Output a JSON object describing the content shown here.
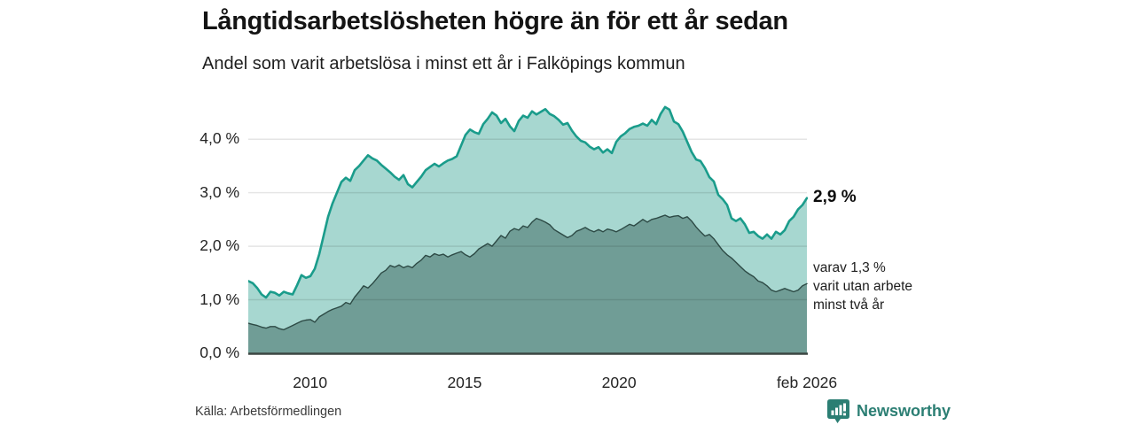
{
  "header": {
    "title": "Långtidsarbetslösheten högre än för ett år sedan",
    "subtitle": "Andel som varit arbetslösa i minst ett år i Falköpings kommun"
  },
  "annotations": {
    "latest_total": "2,9 %",
    "latest_two_year": "varav 1,3 %\nvarit utan arbete\nminst två år"
  },
  "footer": {
    "source": "Källa: Arbetsförmedlingen",
    "brand": "Newsworthy"
  },
  "colors": {
    "line_total": "#1a9c8b",
    "fill_total": "#a7d7d0",
    "line_two_year": "#2d4a45",
    "fill_two_year": "#709d96",
    "axis": "#3c4642",
    "brand_teal": "#2b7e73"
  },
  "chart_data": {
    "type": "area",
    "title": "Långtidsarbetslösheten högre än för ett år sedan",
    "subtitle": "Andel som varit arbetslösa i minst ett år i Falköpings kommun",
    "unit": "%",
    "x_start": 2008.0,
    "x_end": 2026.08,
    "ylim": [
      0,
      4.78
    ],
    "grid": true,
    "legend": "none",
    "y_ticks": [
      {
        "label": "0,0 %",
        "v": 0
      },
      {
        "label": "1,0 %",
        "v": 1
      },
      {
        "label": "2,0 %",
        "v": 2
      },
      {
        "label": "3,0 %",
        "v": 3
      },
      {
        "label": "4,0 %",
        "v": 4
      }
    ],
    "x_ticks": [
      {
        "label": "2010",
        "t": 2010
      },
      {
        "label": "2015",
        "t": 2015
      },
      {
        "label": "2020",
        "t": 2020
      },
      {
        "label": "feb 2026",
        "t": 2026.08
      }
    ],
    "series": [
      {
        "name": "Arbetslösa minst ett år",
        "end_value_label": "2,9 %",
        "color": "#1a9c8b",
        "fill": "#a7d7d0",
        "values": [
          1.35,
          1.31,
          1.22,
          1.1,
          1.04,
          1.15,
          1.13,
          1.08,
          1.15,
          1.12,
          1.1,
          1.27,
          1.46,
          1.41,
          1.44,
          1.58,
          1.85,
          2.2,
          2.55,
          2.8,
          3.0,
          3.2,
          3.28,
          3.22,
          3.42,
          3.5,
          3.6,
          3.7,
          3.64,
          3.6,
          3.52,
          3.45,
          3.38,
          3.3,
          3.24,
          3.33,
          3.16,
          3.1,
          3.2,
          3.3,
          3.42,
          3.48,
          3.54,
          3.49,
          3.55,
          3.6,
          3.63,
          3.68,
          3.88,
          4.08,
          4.18,
          4.13,
          4.1,
          4.28,
          4.38,
          4.5,
          4.44,
          4.3,
          4.38,
          4.24,
          4.15,
          4.34,
          4.44,
          4.4,
          4.52,
          4.46,
          4.51,
          4.56,
          4.47,
          4.43,
          4.36,
          4.27,
          4.3,
          4.16,
          4.05,
          3.97,
          3.94,
          3.86,
          3.81,
          3.85,
          3.75,
          3.81,
          3.74,
          3.95,
          4.05,
          4.11,
          4.19,
          4.23,
          4.25,
          4.29,
          4.25,
          4.36,
          4.28,
          4.47,
          4.6,
          4.55,
          4.33,
          4.28,
          4.14,
          3.95,
          3.76,
          3.62,
          3.59,
          3.46,
          3.29,
          3.21,
          2.96,
          2.88,
          2.77,
          2.52,
          2.47,
          2.52,
          2.41,
          2.25,
          2.27,
          2.19,
          2.14,
          2.22,
          2.14,
          2.27,
          2.22,
          2.3,
          2.47,
          2.55,
          2.69,
          2.77,
          2.9
        ]
      },
      {
        "name": "varav arbetslösa minst två år",
        "end_value_label": "1,3 %",
        "color": "#2d4a45",
        "fill": "#709d96",
        "values": [
          0.56,
          0.54,
          0.52,
          0.49,
          0.47,
          0.5,
          0.5,
          0.46,
          0.44,
          0.48,
          0.52,
          0.56,
          0.6,
          0.62,
          0.63,
          0.58,
          0.68,
          0.73,
          0.78,
          0.82,
          0.85,
          0.88,
          0.95,
          0.92,
          1.05,
          1.15,
          1.26,
          1.22,
          1.3,
          1.4,
          1.5,
          1.55,
          1.64,
          1.61,
          1.65,
          1.6,
          1.63,
          1.6,
          1.68,
          1.74,
          1.83,
          1.8,
          1.86,
          1.83,
          1.85,
          1.8,
          1.84,
          1.87,
          1.9,
          1.84,
          1.8,
          1.86,
          1.95,
          2.0,
          2.05,
          2.0,
          2.1,
          2.2,
          2.15,
          2.28,
          2.33,
          2.3,
          2.38,
          2.35,
          2.45,
          2.52,
          2.49,
          2.45,
          2.4,
          2.31,
          2.26,
          2.21,
          2.16,
          2.2,
          2.28,
          2.31,
          2.35,
          2.3,
          2.27,
          2.31,
          2.27,
          2.32,
          2.3,
          2.27,
          2.31,
          2.36,
          2.41,
          2.38,
          2.44,
          2.5,
          2.45,
          2.5,
          2.52,
          2.55,
          2.58,
          2.54,
          2.56,
          2.57,
          2.52,
          2.55,
          2.47,
          2.36,
          2.27,
          2.19,
          2.22,
          2.14,
          2.03,
          1.92,
          1.84,
          1.78,
          1.7,
          1.62,
          1.54,
          1.48,
          1.43,
          1.35,
          1.32,
          1.26,
          1.18,
          1.15,
          1.18,
          1.21,
          1.18,
          1.15,
          1.18,
          1.26,
          1.3
        ]
      }
    ]
  }
}
